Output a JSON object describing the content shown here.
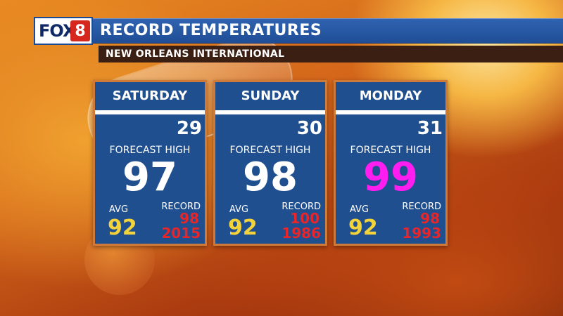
{
  "logo": {
    "text": "FOX",
    "badge": "8"
  },
  "header": {
    "title": "RECORD TEMPERATURES",
    "subtitle": "NEW ORLEANS INTERNATIONAL"
  },
  "colors": {
    "panel_blue": "#1f4f8f",
    "average_yellow": "#f2d33b",
    "record_red": "#e8262a",
    "highlight_magenta": "#ff1df0"
  },
  "cards": [
    {
      "day": "SATURDAY",
      "date": "29",
      "forecast_label": "FORECAST HIGH",
      "forecast_high": "97",
      "avg_label": "AVG",
      "avg": "92",
      "record_label": "RECORD",
      "record": "98",
      "record_year": "2015"
    },
    {
      "day": "SUNDAY",
      "date": "30",
      "forecast_label": "FORECAST HIGH",
      "forecast_high": "98",
      "avg_label": "AVG",
      "avg": "92",
      "record_label": "RECORD",
      "record": "100",
      "record_year": "1986"
    },
    {
      "day": "MONDAY",
      "date": "31",
      "forecast_label": "FORECAST HIGH",
      "forecast_high": "99",
      "forecast_high_color": "#ff1df0",
      "avg_label": "AVG",
      "avg": "92",
      "record_label": "RECORD",
      "record": "98",
      "record_year": "1993"
    }
  ]
}
